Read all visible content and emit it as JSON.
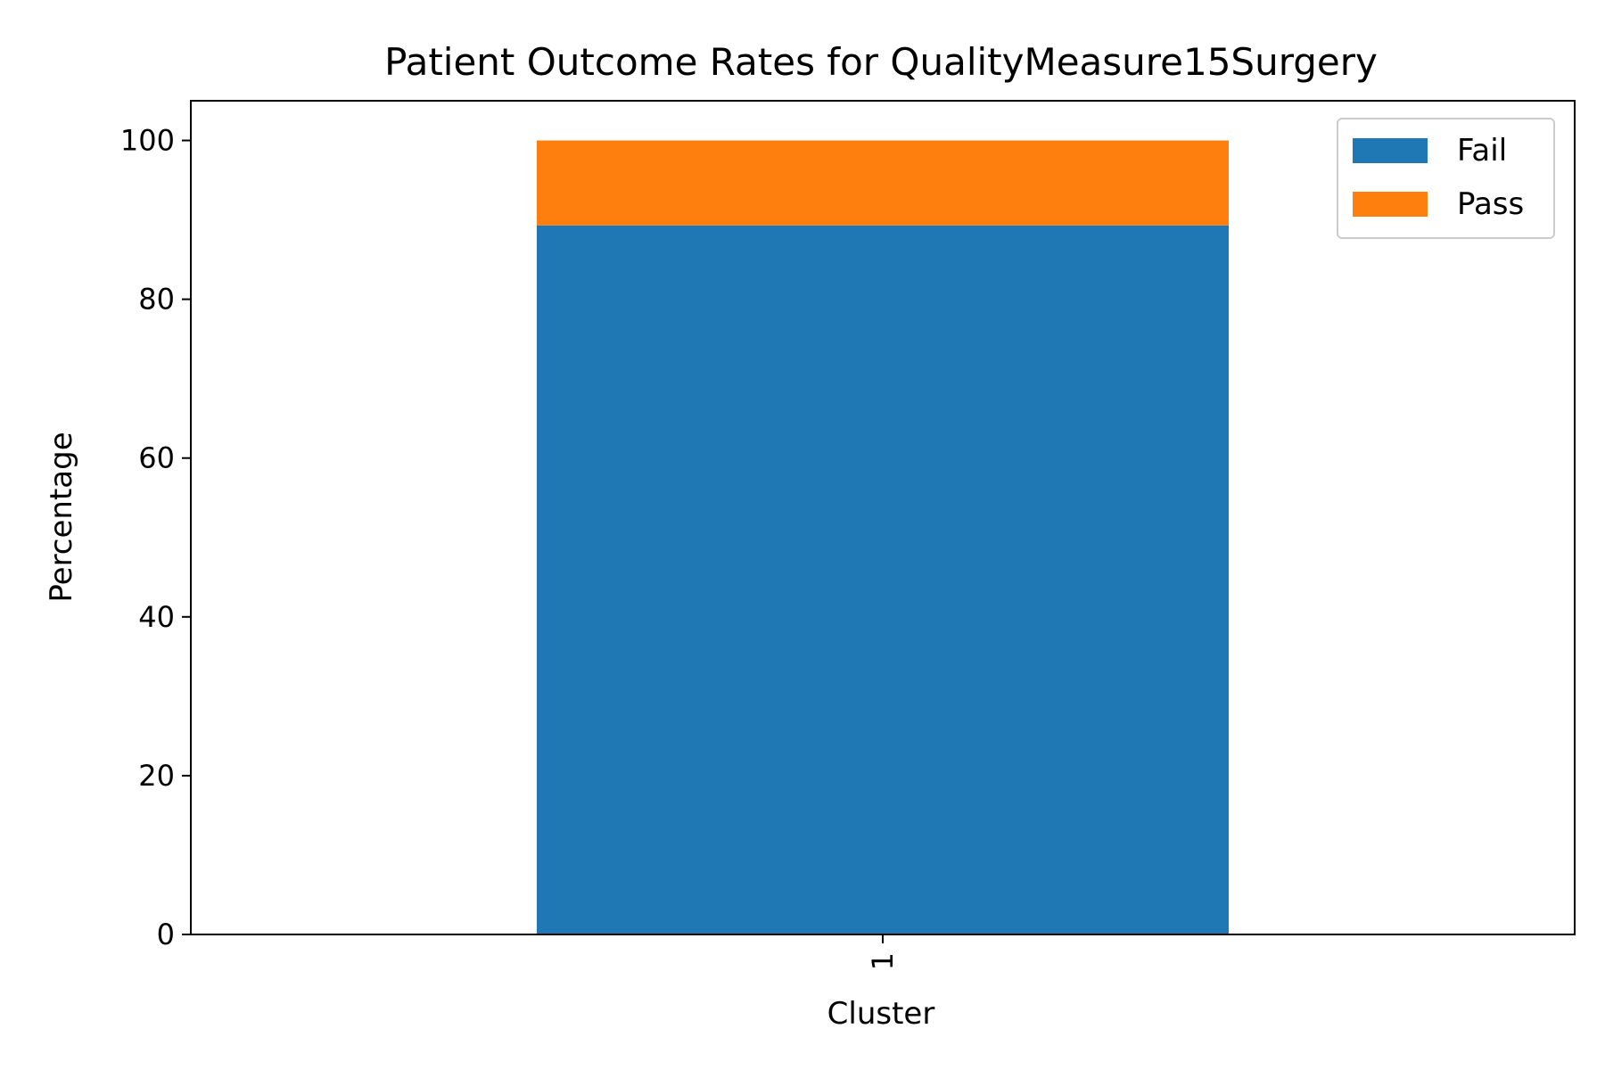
{
  "chart_data": {
    "type": "bar",
    "stacked": true,
    "title": "Patient Outcome Rates for QualityMeasure15Surgery",
    "xlabel": "Cluster",
    "ylabel": "Percentage",
    "categories": [
      "1"
    ],
    "series": [
      {
        "name": "Fail",
        "values": [
          89.3
        ],
        "color": "#1f77b4"
      },
      {
        "name": "Pass",
        "values": [
          10.7
        ],
        "color": "#ff7f0e"
      }
    ],
    "ylim": [
      0,
      105
    ],
    "yticks": [
      0,
      20,
      40,
      60,
      80,
      100
    ],
    "grid": false,
    "legend_position": "top-right"
  }
}
